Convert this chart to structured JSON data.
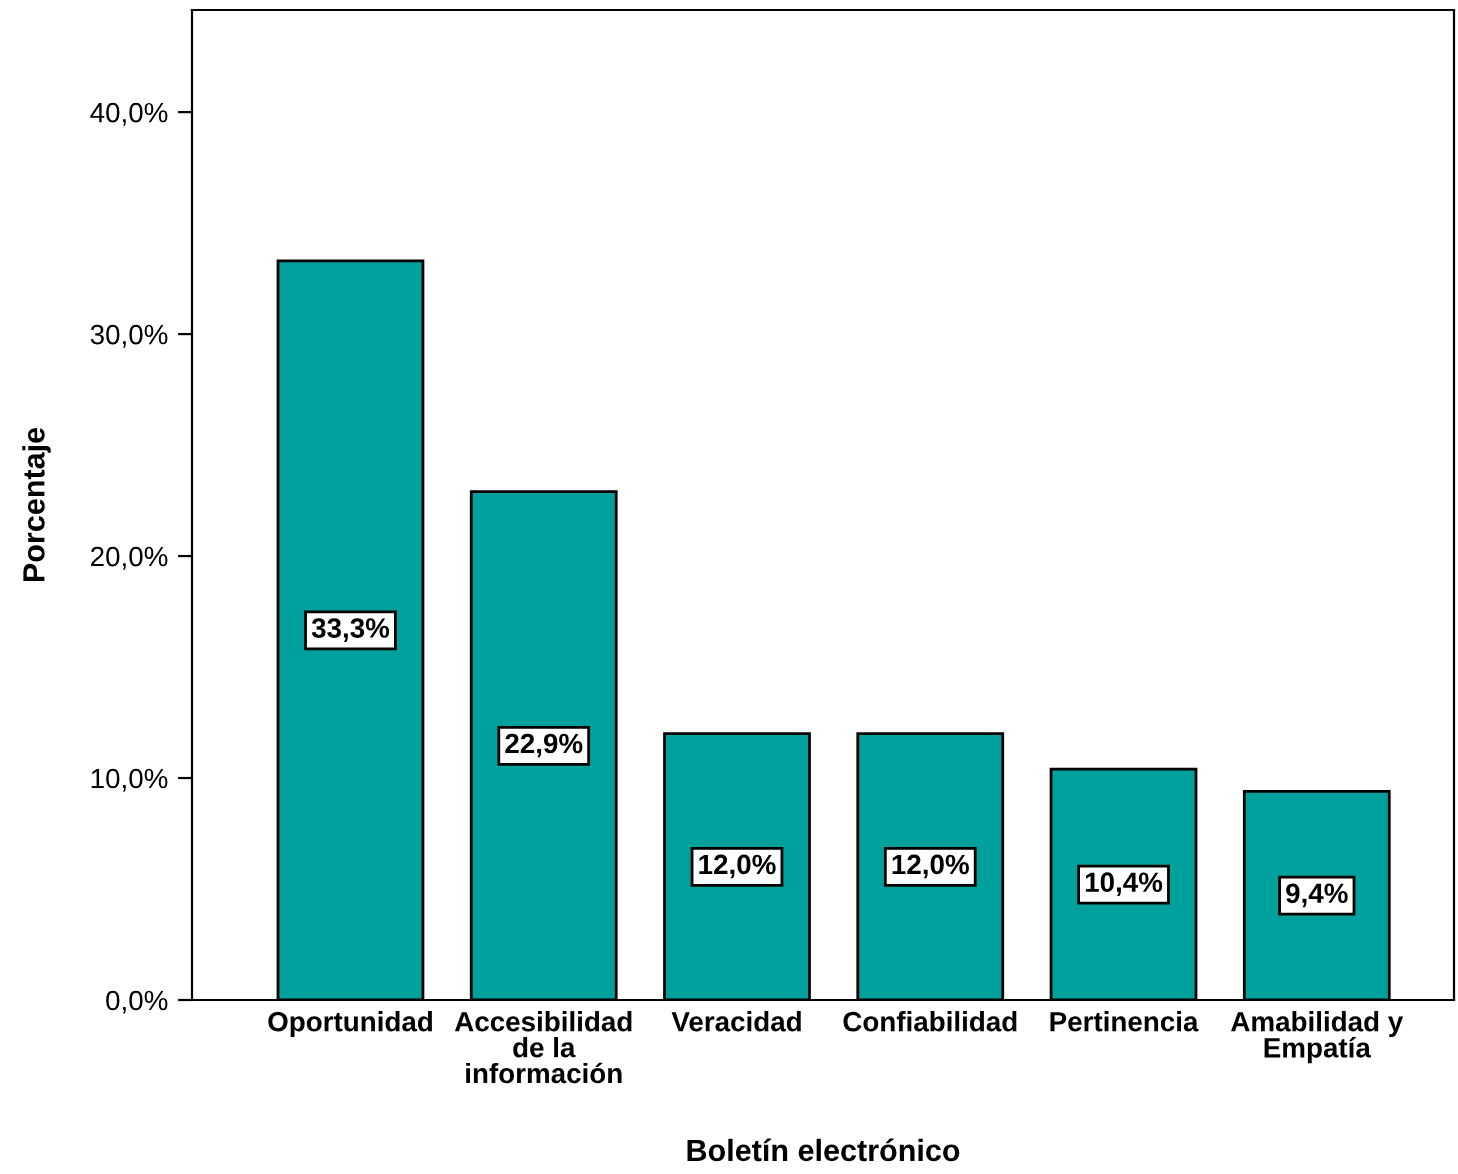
{
  "chart_data": {
    "type": "bar",
    "xlabel": "Boletín electrónico",
    "ylabel": "Porcentaje",
    "categories": [
      "Oportunidad",
      "Accesibilidad\nde la\ninformación",
      "Veracidad",
      "Confiabilidad",
      "Pertinencia",
      "Amabilidad y\nEmpatía"
    ],
    "values": [
      33.3,
      22.9,
      12.0,
      12.0,
      10.4,
      9.4
    ],
    "value_labels": [
      "33,3%",
      "22,9%",
      "12,0%",
      "12,0%",
      "10,4%",
      "9,4%"
    ],
    "color": "#00a19c",
    "ylim": [
      0,
      44.6
    ],
    "yticks": [
      {
        "value": 0,
        "label": "0,0%"
      },
      {
        "value": 10,
        "label": "10,0%"
      },
      {
        "value": 20,
        "label": "20,0%"
      },
      {
        "value": 30,
        "label": "30,0%"
      },
      {
        "value": 40,
        "label": "40,0%"
      }
    ],
    "grid": false,
    "legend": false
  }
}
